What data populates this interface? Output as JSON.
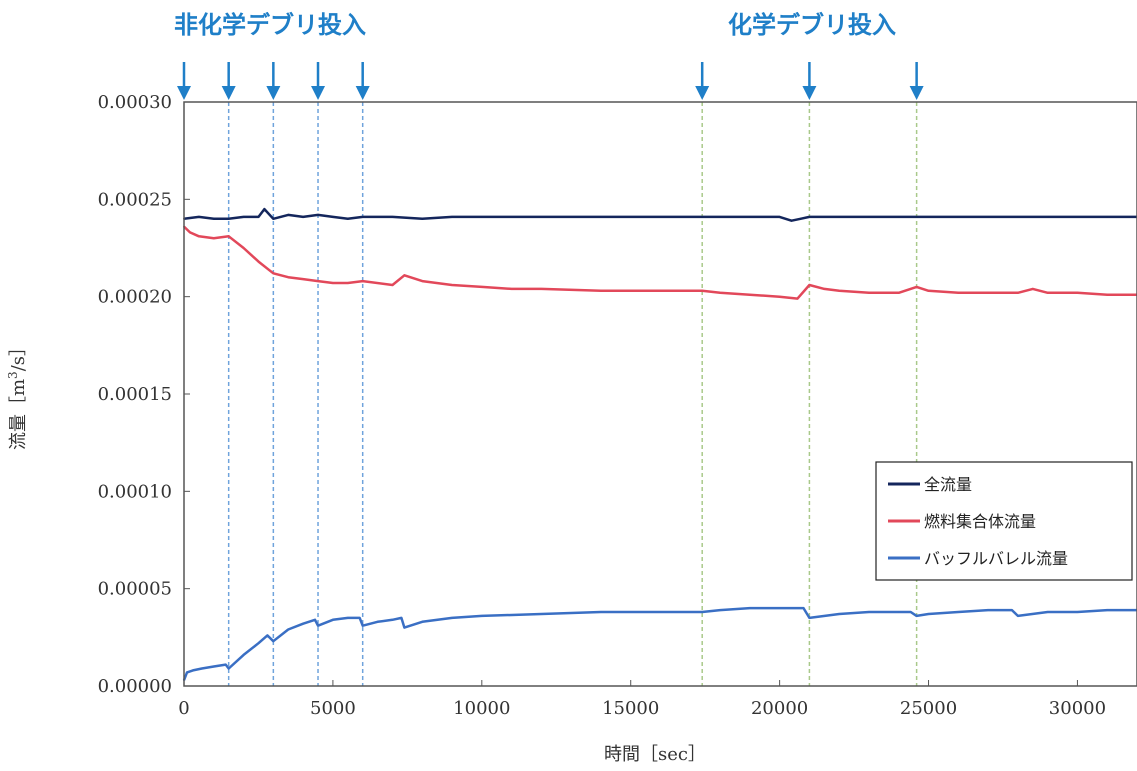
{
  "chart_data": {
    "type": "line",
    "xlabel": "時間［sec］",
    "ylabel_main": "流量",
    "ylabel_unit_pre": "［m",
    "ylabel_unit_sup": "3",
    "ylabel_unit_post": "/s］",
    "xlim": [
      0,
      32000
    ],
    "ylim": [
      0,
      0.0003
    ],
    "x_ticks": [
      0,
      5000,
      10000,
      15000,
      20000,
      25000,
      30000
    ],
    "x_tick_labels": [
      "0",
      "5000",
      "10000",
      "15000",
      "20000",
      "25000",
      "30000"
    ],
    "y_ticks": [
      0,
      5e-05,
      0.0001,
      0.00015,
      0.0002,
      0.00025,
      0.0003
    ],
    "y_tick_labels": [
      "0.00000",
      "0.00005",
      "0.00010",
      "0.00015",
      "0.00020",
      "0.00025",
      "0.00030"
    ],
    "grid": false,
    "legend_position": "right",
    "annotations": [
      {
        "text": "非化学デブリ投入",
        "color": "#1f7fc8",
        "arrow_x": [
          0,
          1500,
          3000,
          4500,
          6000
        ],
        "line_color": "#6fa3dc"
      },
      {
        "text": "化学デブリ投入",
        "color": "#1f7fc8",
        "arrow_x": [
          17400,
          21000,
          24600
        ],
        "line_color": "#a9c98a"
      }
    ],
    "series": [
      {
        "name": "全流量",
        "color": "#14265c",
        "x": [
          0,
          500,
          1000,
          1500,
          2000,
          2500,
          2700,
          3000,
          3500,
          4000,
          4500,
          5000,
          5500,
          6000,
          7000,
          8000,
          9000,
          10000,
          12000,
          14000,
          16000,
          17400,
          18000,
          19000,
          20000,
          20400,
          20700,
          21000,
          22000,
          23000,
          24000,
          24600,
          25000,
          26000,
          27000,
          28000,
          29000,
          30000,
          31000,
          32000
        ],
        "y": [
          0.00024,
          0.000241,
          0.00024,
          0.00024,
          0.000241,
          0.000241,
          0.000245,
          0.00024,
          0.000242,
          0.000241,
          0.000242,
          0.000241,
          0.00024,
          0.000241,
          0.000241,
          0.00024,
          0.000241,
          0.000241,
          0.000241,
          0.000241,
          0.000241,
          0.000241,
          0.000241,
          0.000241,
          0.000241,
          0.000239,
          0.00024,
          0.000241,
          0.000241,
          0.000241,
          0.000241,
          0.000241,
          0.000241,
          0.000241,
          0.000241,
          0.000241,
          0.000241,
          0.000241,
          0.000241,
          0.000241
        ]
      },
      {
        "name": "燃料集合体流量",
        "color": "#e2485a",
        "x": [
          0,
          200,
          500,
          1000,
          1500,
          2000,
          2500,
          3000,
          3500,
          4000,
          4500,
          5000,
          5500,
          6000,
          7000,
          7400,
          8000,
          9000,
          10000,
          11000,
          12000,
          14000,
          16000,
          17400,
          18000,
          19000,
          20000,
          20600,
          21000,
          21500,
          22000,
          23000,
          24000,
          24600,
          25000,
          26000,
          27000,
          28000,
          28500,
          29000,
          30000,
          31000,
          32000
        ],
        "y": [
          0.000236,
          0.000233,
          0.000231,
          0.00023,
          0.000231,
          0.000225,
          0.000218,
          0.000212,
          0.00021,
          0.000209,
          0.000208,
          0.000207,
          0.000207,
          0.000208,
          0.000206,
          0.000211,
          0.000208,
          0.000206,
          0.000205,
          0.000204,
          0.000204,
          0.000203,
          0.000203,
          0.000203,
          0.000202,
          0.000201,
          0.0002,
          0.000199,
          0.000206,
          0.000204,
          0.000203,
          0.000202,
          0.000202,
          0.000205,
          0.000203,
          0.000202,
          0.000202,
          0.000202,
          0.000204,
          0.000202,
          0.000202,
          0.000201,
          0.000201
        ]
      },
      {
        "name": "バッフルバレル流量",
        "color": "#3a6fc4",
        "x": [
          0,
          100,
          300,
          600,
          1000,
          1400,
          1500,
          2000,
          2500,
          2800,
          3000,
          3500,
          4000,
          4400,
          4500,
          5000,
          5500,
          5900,
          6000,
          6500,
          7000,
          7300,
          7400,
          8000,
          9000,
          10000,
          12000,
          14000,
          16000,
          17400,
          18000,
          19000,
          20000,
          20800,
          21000,
          22000,
          23000,
          24000,
          24400,
          24600,
          25000,
          26000,
          27000,
          27800,
          28000,
          29000,
          30000,
          31000,
          32000
        ],
        "y": [
          3e-06,
          7e-06,
          8e-06,
          9e-06,
          1e-05,
          1.1e-05,
          9e-06,
          1.6e-05,
          2.2e-05,
          2.6e-05,
          2.3e-05,
          2.9e-05,
          3.2e-05,
          3.4e-05,
          3.1e-05,
          3.4e-05,
          3.5e-05,
          3.5e-05,
          3.1e-05,
          3.3e-05,
          3.4e-05,
          3.5e-05,
          3e-05,
          3.3e-05,
          3.5e-05,
          3.6e-05,
          3.7e-05,
          3.8e-05,
          3.8e-05,
          3.8e-05,
          3.9e-05,
          4e-05,
          4e-05,
          4e-05,
          3.5e-05,
          3.7e-05,
          3.8e-05,
          3.8e-05,
          3.8e-05,
          3.6e-05,
          3.7e-05,
          3.8e-05,
          3.9e-05,
          3.9e-05,
          3.6e-05,
          3.8e-05,
          3.8e-05,
          3.9e-05,
          3.9e-05
        ]
      }
    ]
  }
}
